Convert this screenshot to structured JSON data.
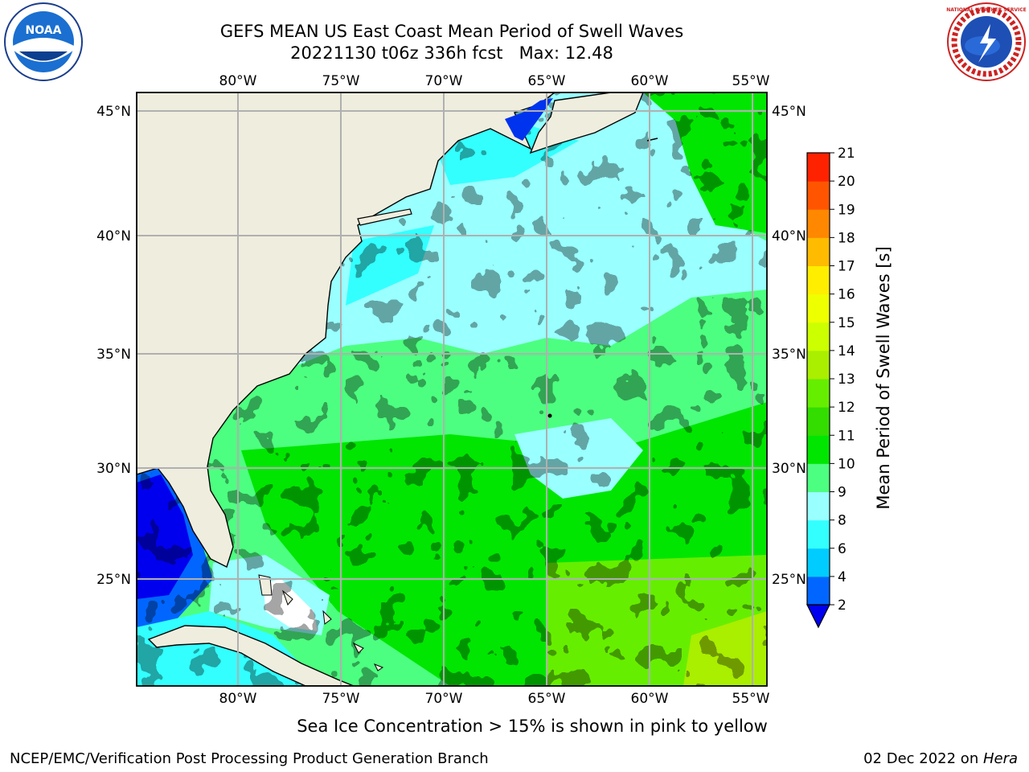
{
  "title": {
    "line1": "GEFS MEAN US East Coast Mean Period of Swell Waves",
    "line2": "20221130 t06z 336h fcst   Max: 12.48"
  },
  "logos": {
    "left": "NOAA",
    "right": "NATIONAL WEATHER SERVICE"
  },
  "map": {
    "lon_labels": [
      "80°W",
      "75°W",
      "70°W",
      "65°W",
      "60°W",
      "55°W"
    ],
    "lat_labels": [
      "45°N",
      "40°N",
      "35°N",
      "30°N",
      "25°N"
    ],
    "lon_range": [
      -85,
      -54.5
    ],
    "lat_range": [
      20.5,
      46
    ],
    "land_color": "#efedde",
    "grid_color": "#b0b0b0"
  },
  "colorbar": {
    "label": "Mean Period of Swell Waves [s]",
    "ticks": [
      "2",
      "4",
      "6",
      "8",
      "9",
      "10",
      "11",
      "12",
      "13",
      "14",
      "15",
      "16",
      "17",
      "18",
      "19",
      "20",
      "21"
    ],
    "colors": [
      "#0066ff",
      "#00ccff",
      "#33ffff",
      "#99ffff",
      "#4dff80",
      "#00e600",
      "#33dd00",
      "#66ee00",
      "#aaee00",
      "#ccff00",
      "#eeff00",
      "#ffee00",
      "#ffbb00",
      "#ff8800",
      "#ff5500",
      "#ff2200"
    ],
    "extend_color": "#0000ee"
  },
  "subtitle": "Sea Ice Concentration > 15% is shown in pink to yellow",
  "footer": {
    "left": "NCEP/EMC/Verification Post Processing Product Generation Branch",
    "date": "02 Dec 2022 on ",
    "host": "Hera"
  }
}
